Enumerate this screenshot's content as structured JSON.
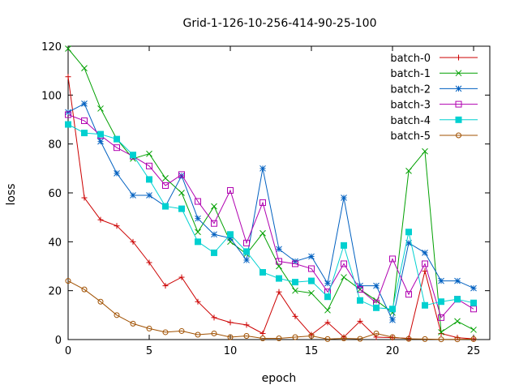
{
  "chart_data": {
    "type": "line",
    "title": "Grid-1-126-10-256-414-90-25-100",
    "xlabel": "epoch",
    "ylabel": "loss",
    "xlim": [
      0,
      26
    ],
    "ylim": [
      0,
      120
    ],
    "xticks": [
      0,
      5,
      10,
      15,
      20,
      25
    ],
    "yticks": [
      0,
      20,
      40,
      60,
      80,
      100,
      120
    ],
    "grid": false,
    "legend_position": "top-right",
    "x": [
      0,
      1,
      2,
      3,
      4,
      5,
      6,
      7,
      8,
      9,
      10,
      11,
      12,
      13,
      14,
      15,
      16,
      17,
      18,
      19,
      20,
      21,
      22,
      23,
      24,
      25
    ],
    "series": [
      {
        "name": "batch-0",
        "color": "#cc0000",
        "marker": "plus",
        "values": [
          107.5,
          58,
          49,
          46.5,
          40,
          31.5,
          22,
          25.5,
          15.5,
          9,
          7,
          6,
          2.5,
          19.5,
          9.5,
          2,
          7,
          1,
          7.5,
          1,
          0.8,
          0.5,
          28,
          2.5,
          0.8,
          0.3
        ]
      },
      {
        "name": "batch-1",
        "color": "#00a000",
        "marker": "x",
        "values": [
          119,
          111,
          94.5,
          82,
          74,
          76,
          66,
          60,
          44,
          54.5,
          40,
          35,
          43.5,
          30,
          20,
          19,
          12,
          25.5,
          20.5,
          16,
          11,
          69,
          77,
          3,
          7.5,
          4
        ]
      },
      {
        "name": "batch-2",
        "color": "#0060c0",
        "marker": "star",
        "values": [
          93,
          96.5,
          81,
          68,
          59,
          59,
          54.5,
          67,
          49.5,
          43,
          41.5,
          32.5,
          70,
          37,
          32,
          34,
          23,
          58,
          22,
          22,
          8,
          39.5,
          35.5,
          24,
          24,
          21
        ]
      },
      {
        "name": "batch-3",
        "color": "#b000b0",
        "marker": "open-square",
        "values": [
          92,
          89.5,
          83.5,
          78.5,
          75,
          71,
          63,
          67.5,
          56.5,
          47.5,
          61,
          39.5,
          56,
          32,
          31,
          29,
          19.5,
          31,
          20.5,
          15,
          33,
          18.5,
          31,
          9,
          16.5,
          12.5
        ]
      },
      {
        "name": "batch-4",
        "color": "#00d0d0",
        "marker": "filled-square",
        "values": [
          88,
          84.5,
          84,
          82,
          75.5,
          65.5,
          54.5,
          53.5,
          40,
          35.5,
          43,
          36,
          27.5,
          25,
          23.5,
          24,
          17.5,
          38.5,
          16,
          13,
          12.5,
          44,
          14,
          15.5,
          16.5,
          15
        ]
      },
      {
        "name": "batch-5",
        "color": "#a05000",
        "marker": "open-circle",
        "values": [
          24,
          20.5,
          15.5,
          10,
          6.5,
          4.5,
          3,
          3.5,
          2,
          2.5,
          1,
          1.5,
          0.5,
          0.5,
          1,
          1.5,
          0.2,
          0.5,
          0.3,
          2.5,
          1,
          0.3,
          0.2,
          0.1,
          0.1,
          0.2
        ]
      }
    ]
  }
}
